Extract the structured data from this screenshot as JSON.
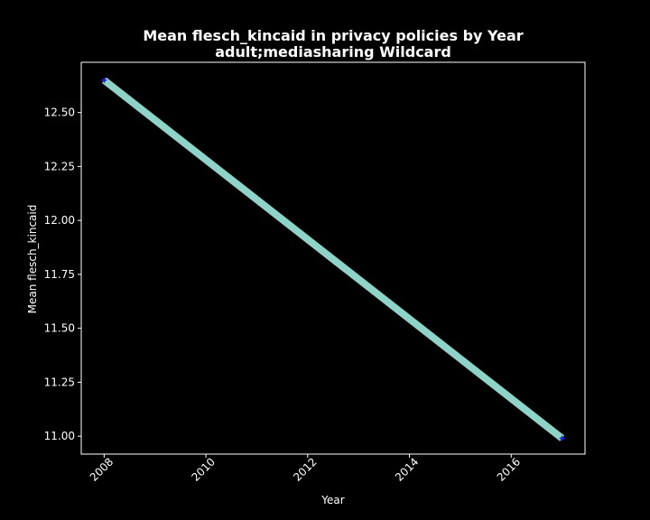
{
  "chart_data": {
    "type": "line",
    "title_line1": "Mean flesch_kincaid in privacy policies by Year",
    "title_line2": "adult;mediasharing Wildcard",
    "xlabel": "Year",
    "ylabel": "Mean flesch_kincaid",
    "x_ticks": [
      2008,
      2010,
      2012,
      2014,
      2016
    ],
    "x_tick_labels": [
      "2008",
      "2010",
      "2012",
      "2014",
      "2016"
    ],
    "y_ticks": [
      11.0,
      11.25,
      11.5,
      11.75,
      12.0,
      12.25,
      12.5
    ],
    "y_tick_labels": [
      "11.00",
      "11.25",
      "11.50",
      "11.75",
      "12.00",
      "12.25",
      "12.50"
    ],
    "xlim": [
      2007.55,
      2017.45
    ],
    "ylim": [
      10.917,
      12.733
    ],
    "grid": false,
    "series": [
      {
        "x": [
          2008,
          2017
        ],
        "y": [
          12.65,
          10.99
        ]
      }
    ],
    "colors": {
      "background": "#000000",
      "line": "#8dd3c7",
      "marker": "#1f1fe0",
      "text": "#ffffff",
      "spine": "#ffffff"
    }
  }
}
